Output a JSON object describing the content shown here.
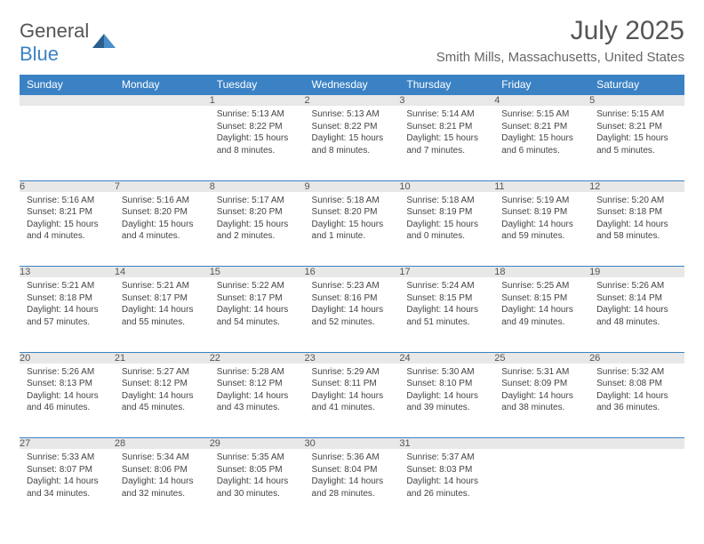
{
  "logo": {
    "text1": "General",
    "text2": "Blue"
  },
  "title": "July 2025",
  "location": "Smith Mills, Massachusetts, United States",
  "colors": {
    "header_bg": "#3b82c4",
    "header_fg": "#ffffff",
    "daynum_bg": "#e8e8e8",
    "text": "#444444",
    "border": "#3b82c4"
  },
  "typography": {
    "title_fontsize": 30,
    "location_fontsize": 15,
    "dayname_fontsize": 12,
    "daynum_fontsize": 11,
    "cell_fontsize": 10
  },
  "dayNames": [
    "Sunday",
    "Monday",
    "Tuesday",
    "Wednesday",
    "Thursday",
    "Friday",
    "Saturday"
  ],
  "weeks": [
    [
      null,
      null,
      {
        "n": "1",
        "sunrise": "5:13 AM",
        "sunset": "8:22 PM",
        "daylight": "15 hours and 8 minutes."
      },
      {
        "n": "2",
        "sunrise": "5:13 AM",
        "sunset": "8:22 PM",
        "daylight": "15 hours and 8 minutes."
      },
      {
        "n": "3",
        "sunrise": "5:14 AM",
        "sunset": "8:21 PM",
        "daylight": "15 hours and 7 minutes."
      },
      {
        "n": "4",
        "sunrise": "5:15 AM",
        "sunset": "8:21 PM",
        "daylight": "15 hours and 6 minutes."
      },
      {
        "n": "5",
        "sunrise": "5:15 AM",
        "sunset": "8:21 PM",
        "daylight": "15 hours and 5 minutes."
      }
    ],
    [
      {
        "n": "6",
        "sunrise": "5:16 AM",
        "sunset": "8:21 PM",
        "daylight": "15 hours and 4 minutes."
      },
      {
        "n": "7",
        "sunrise": "5:16 AM",
        "sunset": "8:20 PM",
        "daylight": "15 hours and 4 minutes."
      },
      {
        "n": "8",
        "sunrise": "5:17 AM",
        "sunset": "8:20 PM",
        "daylight": "15 hours and 2 minutes."
      },
      {
        "n": "9",
        "sunrise": "5:18 AM",
        "sunset": "8:20 PM",
        "daylight": "15 hours and 1 minute."
      },
      {
        "n": "10",
        "sunrise": "5:18 AM",
        "sunset": "8:19 PM",
        "daylight": "15 hours and 0 minutes."
      },
      {
        "n": "11",
        "sunrise": "5:19 AM",
        "sunset": "8:19 PM",
        "daylight": "14 hours and 59 minutes."
      },
      {
        "n": "12",
        "sunrise": "5:20 AM",
        "sunset": "8:18 PM",
        "daylight": "14 hours and 58 minutes."
      }
    ],
    [
      {
        "n": "13",
        "sunrise": "5:21 AM",
        "sunset": "8:18 PM",
        "daylight": "14 hours and 57 minutes."
      },
      {
        "n": "14",
        "sunrise": "5:21 AM",
        "sunset": "8:17 PM",
        "daylight": "14 hours and 55 minutes."
      },
      {
        "n": "15",
        "sunrise": "5:22 AM",
        "sunset": "8:17 PM",
        "daylight": "14 hours and 54 minutes."
      },
      {
        "n": "16",
        "sunrise": "5:23 AM",
        "sunset": "8:16 PM",
        "daylight": "14 hours and 52 minutes."
      },
      {
        "n": "17",
        "sunrise": "5:24 AM",
        "sunset": "8:15 PM",
        "daylight": "14 hours and 51 minutes."
      },
      {
        "n": "18",
        "sunrise": "5:25 AM",
        "sunset": "8:15 PM",
        "daylight": "14 hours and 49 minutes."
      },
      {
        "n": "19",
        "sunrise": "5:26 AM",
        "sunset": "8:14 PM",
        "daylight": "14 hours and 48 minutes."
      }
    ],
    [
      {
        "n": "20",
        "sunrise": "5:26 AM",
        "sunset": "8:13 PM",
        "daylight": "14 hours and 46 minutes."
      },
      {
        "n": "21",
        "sunrise": "5:27 AM",
        "sunset": "8:12 PM",
        "daylight": "14 hours and 45 minutes."
      },
      {
        "n": "22",
        "sunrise": "5:28 AM",
        "sunset": "8:12 PM",
        "daylight": "14 hours and 43 minutes."
      },
      {
        "n": "23",
        "sunrise": "5:29 AM",
        "sunset": "8:11 PM",
        "daylight": "14 hours and 41 minutes."
      },
      {
        "n": "24",
        "sunrise": "5:30 AM",
        "sunset": "8:10 PM",
        "daylight": "14 hours and 39 minutes."
      },
      {
        "n": "25",
        "sunrise": "5:31 AM",
        "sunset": "8:09 PM",
        "daylight": "14 hours and 38 minutes."
      },
      {
        "n": "26",
        "sunrise": "5:32 AM",
        "sunset": "8:08 PM",
        "daylight": "14 hours and 36 minutes."
      }
    ],
    [
      {
        "n": "27",
        "sunrise": "5:33 AM",
        "sunset": "8:07 PM",
        "daylight": "14 hours and 34 minutes."
      },
      {
        "n": "28",
        "sunrise": "5:34 AM",
        "sunset": "8:06 PM",
        "daylight": "14 hours and 32 minutes."
      },
      {
        "n": "29",
        "sunrise": "5:35 AM",
        "sunset": "8:05 PM",
        "daylight": "14 hours and 30 minutes."
      },
      {
        "n": "30",
        "sunrise": "5:36 AM",
        "sunset": "8:04 PM",
        "daylight": "14 hours and 28 minutes."
      },
      {
        "n": "31",
        "sunrise": "5:37 AM",
        "sunset": "8:03 PM",
        "daylight": "14 hours and 26 minutes."
      },
      null,
      null
    ]
  ]
}
